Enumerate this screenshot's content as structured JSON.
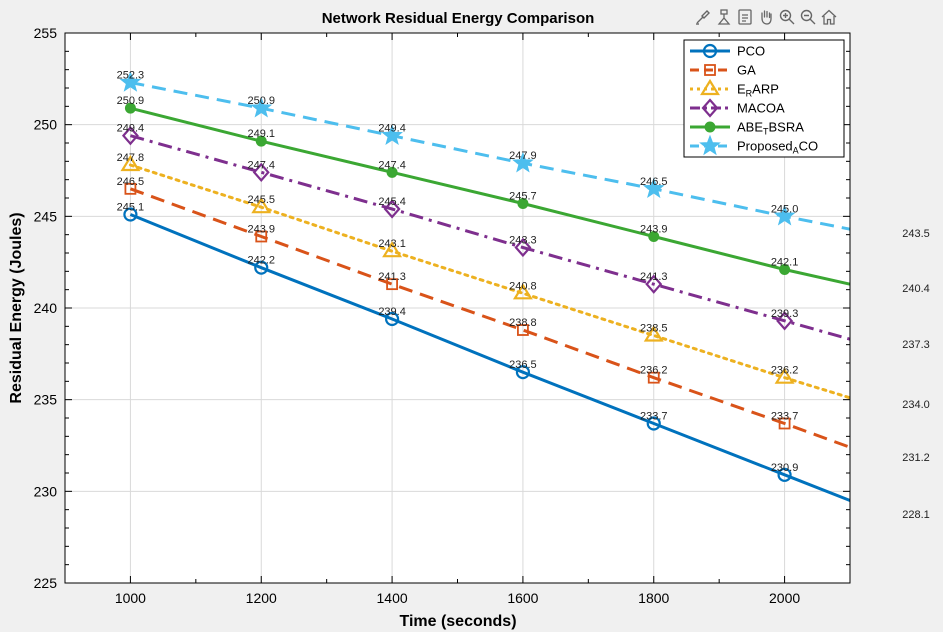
{
  "toolbar": {
    "icons": [
      "brush-icon",
      "data-tip-icon",
      "export-icon",
      "pan-icon",
      "zoom-in-icon",
      "zoom-out-icon",
      "home-icon"
    ]
  },
  "chart_data": {
    "type": "line",
    "title": "Network Residual Energy Comparison",
    "xlabel": "Time (seconds)",
    "ylabel": "Residual Energy (Joules)",
    "xlim": [
      900,
      2100
    ],
    "ylim": [
      225,
      255
    ],
    "xticks": [
      1000,
      1200,
      1400,
      1600,
      1800,
      2000
    ],
    "yticks": [
      225,
      230,
      235,
      240,
      245,
      250,
      255
    ],
    "x": [
      1000,
      1200,
      1400,
      1600,
      1800,
      2000
    ],
    "x_end": 2100,
    "grid": true,
    "legend_position": "top-right",
    "series": [
      {
        "name": "PCO",
        "name_base": "PCO",
        "name_sub": "",
        "name_tail": "",
        "color": "#0072BD",
        "dash": "solid",
        "marker": "circle",
        "values": [
          245.1,
          242.2,
          239.4,
          236.5,
          233.7,
          230.9
        ],
        "end_value": 229.5,
        "labels": [
          "245.1",
          "242.2",
          "239.4",
          "236.5",
          "233.7",
          "230.9"
        ]
      },
      {
        "name": "GA",
        "name_base": "GA",
        "name_sub": "",
        "name_tail": "",
        "color": "#D95319",
        "dash": "dashed",
        "marker": "square",
        "values": [
          246.5,
          243.9,
          241.3,
          238.8,
          236.2,
          233.7
        ],
        "end_value": 232.4,
        "labels": [
          "246.5",
          "243.9",
          "241.3",
          "238.8",
          "236.2",
          "233.7"
        ]
      },
      {
        "name": "ERARP",
        "name_base": "E",
        "name_sub": "R",
        "name_tail": "ARP",
        "color": "#EDB120",
        "dash": "dotted",
        "marker": "triangle",
        "values": [
          247.8,
          245.5,
          243.1,
          240.8,
          238.5,
          236.2
        ],
        "end_value": 235.1,
        "labels": [
          "247.8",
          "245.5",
          "243.1",
          "240.8",
          "238.5",
          "236.2"
        ]
      },
      {
        "name": "MACOA",
        "name_base": "MACOA",
        "name_sub": "",
        "name_tail": "",
        "color": "#7E2F8E",
        "dash": "dashdot",
        "marker": "diamond",
        "values": [
          249.4,
          247.4,
          245.4,
          243.3,
          241.3,
          239.3
        ],
        "end_value": 238.3,
        "labels": [
          "249.4",
          "247.4",
          "245.4",
          "243.3",
          "241.3",
          "239.3"
        ]
      },
      {
        "name": "ABETBSRA",
        "name_base": "ABE",
        "name_sub": "T",
        "name_tail": "BSRA",
        "color": "#3BA733",
        "dash": "solid",
        "marker": "dot",
        "values": [
          250.9,
          249.1,
          247.4,
          245.7,
          243.9,
          242.1
        ],
        "end_value": 241.3,
        "labels": [
          "250.9",
          "249.1",
          "247.4",
          "245.7",
          "243.9",
          "242.1"
        ]
      },
      {
        "name": "ProposedACO",
        "name_base": "Proposed",
        "name_sub": "A",
        "name_tail": "CO",
        "color": "#4DBEEE",
        "dash": "dashed",
        "marker": "star",
        "values": [
          252.3,
          250.9,
          249.4,
          247.9,
          246.5,
          245.0
        ],
        "end_value": 244.3,
        "labels": [
          "252.3",
          "250.9",
          "249.4",
          "247.9",
          "246.5",
          "245.0"
        ]
      }
    ],
    "side_annotations": [
      "243.5",
      "240.4",
      "237.3",
      "234.0",
      "231.2",
      "228.1"
    ]
  }
}
